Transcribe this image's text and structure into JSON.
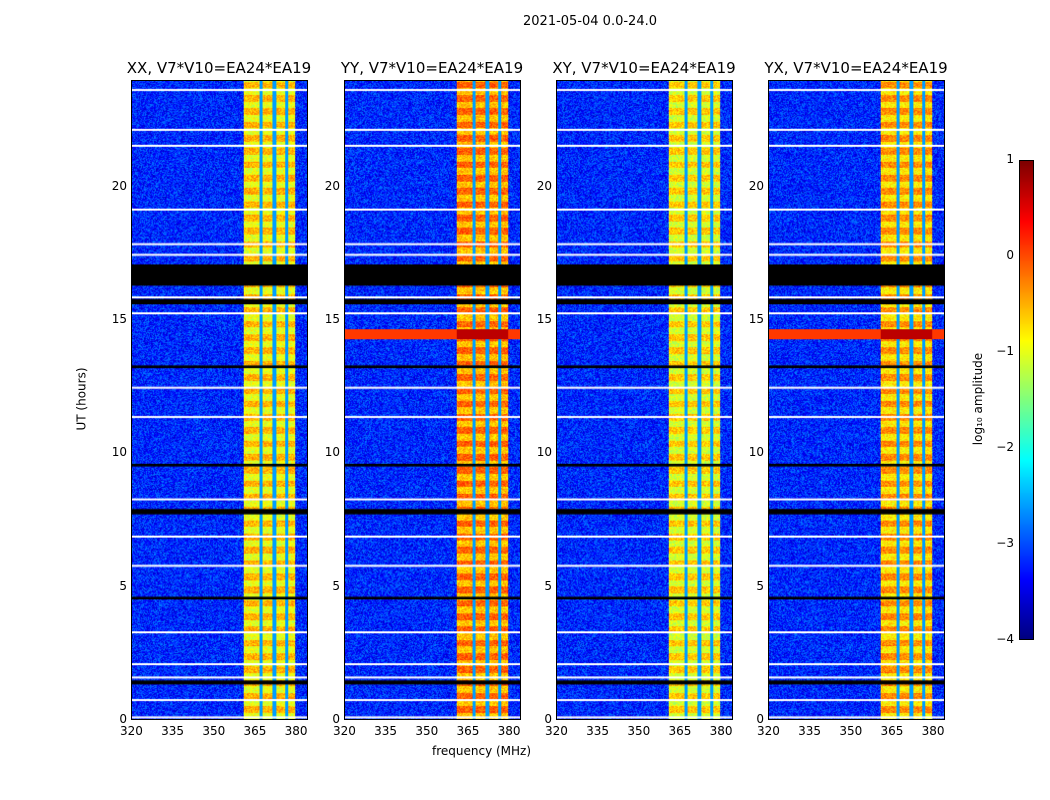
{
  "chart_data": {
    "type": "heatmap",
    "title": "2021-05-04 0.0-24.0",
    "xlabel": "frequency (MHz)",
    "ylabel": "UT (hours)",
    "xlim": [
      320,
      384.5
    ],
    "ylim": [
      0,
      24
    ],
    "xticks": [
      "320",
      "335",
      "350",
      "365",
      "380"
    ],
    "yticks": [
      "0",
      "5",
      "10",
      "15",
      "20"
    ],
    "panels": [
      {
        "title": "XX, V7*V10=EA24*EA19",
        "rfi_level": -0.8
      },
      {
        "title": "YY, V7*V10=EA24*EA19",
        "rfi_level": -0.4
      },
      {
        "title": "XY, V7*V10=EA24*EA19",
        "rfi_level": -0.9
      },
      {
        "title": "YX, V7*V10=EA24*EA19",
        "rfi_level": -0.6
      }
    ],
    "colorbar": {
      "label": "log₁₀ amplitude",
      "ticks": [
        "1",
        "0",
        "−1",
        "−2",
        "−3",
        "−4"
      ],
      "range": [
        -4,
        1
      ],
      "colormap": "jet"
    },
    "background_level": -3.2,
    "rfi_band_mhz": [
      361,
      380
    ],
    "rfi_gap_channels_mhz": [
      367.5,
      372.3,
      376.8
    ],
    "flagged_black_hours": [
      [
        16.3,
        17.1
      ],
      [
        15.6,
        15.8
      ],
      [
        13.2,
        13.3
      ],
      [
        9.5,
        9.6
      ],
      [
        7.7,
        7.9
      ],
      [
        4.5,
        4.6
      ],
      [
        1.3,
        1.45
      ]
    ],
    "white_gap_hours": [
      23.7,
      22.2,
      21.6,
      19.2,
      17.9,
      17.5,
      15.9,
      15.3,
      12.5,
      11.4,
      8.3,
      6.9,
      5.8,
      3.3,
      2.1,
      1.6,
      0.75,
      0.1
    ],
    "strong_band_hours": [
      14.3,
      14.7
    ]
  }
}
